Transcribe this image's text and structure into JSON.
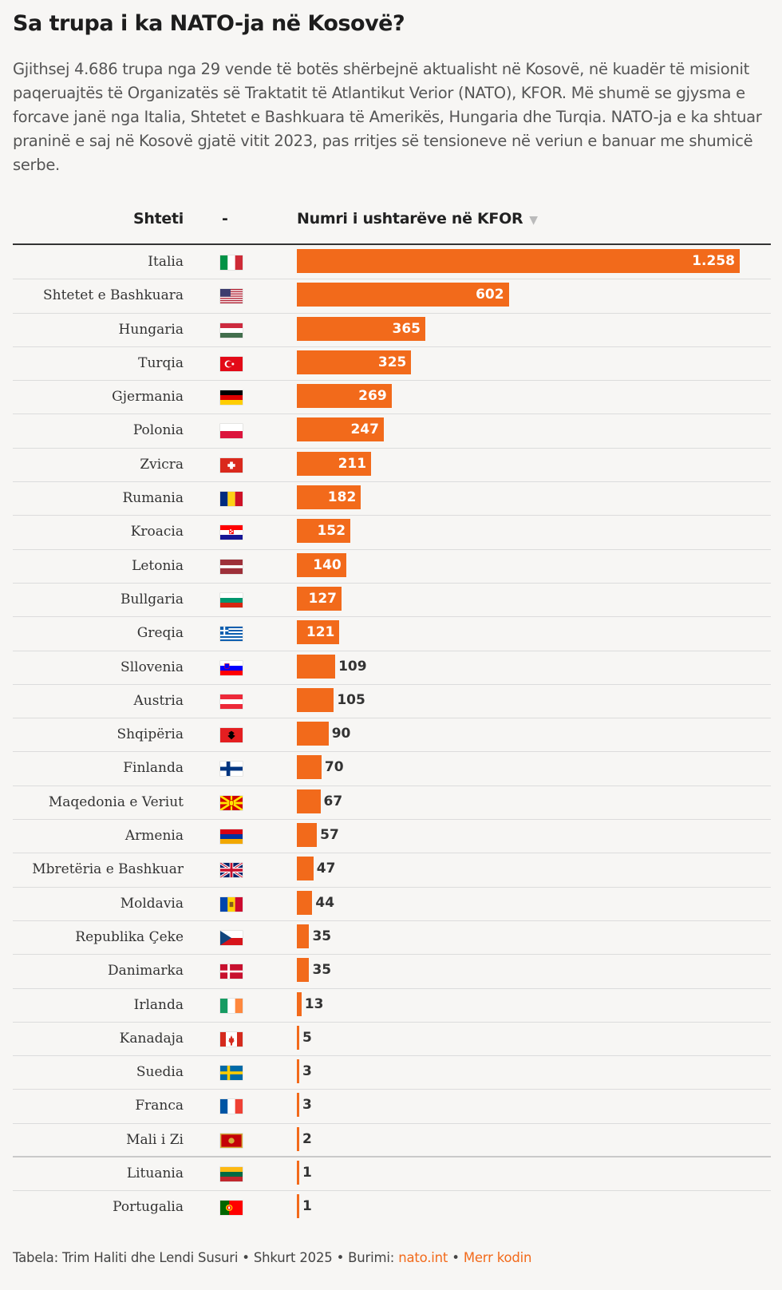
{
  "title": "Sa trupa i ka NATO-ja në Kosovë?",
  "description": "Gjithsej 4.686 trupa nga 29 vende të botës shërbejnë aktualisht në Kosovë, në kuadër të misionit paqeruajtës të Organizatës së Traktatit të Atlantikut Verior (NATO), KFOR. Më shumë se gjysma e forcave janë nga Italia, Shtetet e Bashkuara të Amerikës, Hungaria dhe Turqia. NATO-ja e ka shtuar praninë e saj në Kosovë gjatë vitit 2023, pas rritjes së tensioneve në veriun e banuar me shumicë serbe.",
  "header": {
    "country": "Shteti",
    "flag": "-",
    "value": "Numri i ushtarëve në KFOR",
    "sort_icon": "▼"
  },
  "colors": {
    "bar": "#f26a1b",
    "link": "#f26a1b"
  },
  "chart_data": {
    "type": "bar",
    "orientation": "horizontal",
    "categories": [
      "Italia",
      "Shtetet e Bashkuara",
      "Hungaria",
      "Turqia",
      "Gjermania",
      "Polonia",
      "Zvicra",
      "Rumania",
      "Kroacia",
      "Letonia",
      "Bullgaria",
      "Greqia",
      "Sllovenia",
      "Austria",
      "Shqipëria",
      "Finlanda",
      "Maqedonia e Veriut",
      "Armenia",
      "Mbretëria e Bashkuar",
      "Moldavia",
      "Republika Çeke",
      "Danimarka",
      "Irlanda",
      "Kanadaja",
      "Suedia",
      "Franca",
      "Mali i Zi",
      "Lituania",
      "Portugalia"
    ],
    "values": [
      1258,
      602,
      365,
      325,
      269,
      247,
      211,
      182,
      152,
      140,
      127,
      121,
      109,
      105,
      90,
      70,
      67,
      57,
      47,
      44,
      35,
      35,
      13,
      5,
      3,
      3,
      2,
      1,
      1
    ],
    "flags": [
      "it",
      "us",
      "hu",
      "tr",
      "de",
      "pl",
      "ch",
      "ro",
      "hr",
      "lv",
      "bg",
      "gr",
      "si",
      "at",
      "al",
      "fi",
      "mk",
      "am",
      "gb",
      "md",
      "cz",
      "dk",
      "ie",
      "ca",
      "se",
      "fr",
      "me",
      "lt",
      "pt"
    ],
    "xlim": [
      0,
      1258
    ],
    "grid": false
  },
  "footer": {
    "credits": "Tabela: Trim Haliti dhe Lendi Susuri • Shkurt 2025 • Burimi: ",
    "source_link": "nato.int",
    "sep": " • ",
    "code_link": "Merr kodin"
  }
}
